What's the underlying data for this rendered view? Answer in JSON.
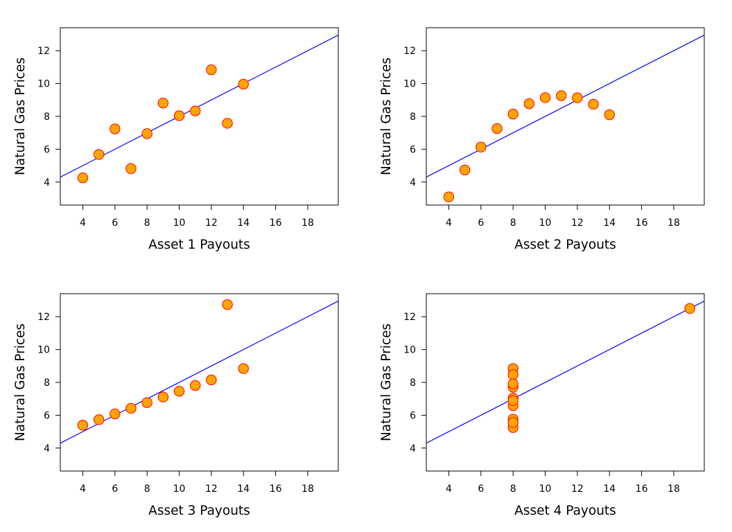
{
  "chart_data": [
    {
      "type": "scatter",
      "xlabel": "Asset 1 Payouts",
      "ylabel": "Natural Gas Prices",
      "xlim": [
        2.6,
        19.9
      ],
      "ylim": [
        2.6,
        13.4
      ],
      "xticks": [
        4,
        6,
        8,
        10,
        12,
        14,
        16,
        18
      ],
      "yticks": [
        4,
        6,
        8,
        10,
        12
      ],
      "x": [
        4,
        5,
        6,
        7,
        8,
        9,
        10,
        11,
        12,
        13,
        14
      ],
      "y": [
        4.26,
        5.68,
        7.24,
        4.82,
        6.95,
        8.81,
        8.04,
        8.33,
        10.84,
        7.58,
        9.96
      ],
      "regression": {
        "intercept": 3.0,
        "slope": 0.5
      },
      "point_fill": "#FFA500",
      "point_stroke": "#FF0000",
      "line_color": "#0000FF",
      "grid": false
    },
    {
      "type": "scatter",
      "xlabel": "Asset 2 Payouts",
      "ylabel": "Natural Gas Prices",
      "xlim": [
        2.6,
        19.9
      ],
      "ylim": [
        2.6,
        13.4
      ],
      "xticks": [
        4,
        6,
        8,
        10,
        12,
        14,
        16,
        18
      ],
      "yticks": [
        4,
        6,
        8,
        10,
        12
      ],
      "x": [
        4,
        5,
        6,
        7,
        8,
        9,
        10,
        11,
        12,
        13,
        14
      ],
      "y": [
        3.1,
        4.74,
        6.13,
        7.26,
        8.14,
        8.77,
        9.14,
        9.26,
        9.13,
        8.74,
        8.1
      ],
      "regression": {
        "intercept": 3.0,
        "slope": 0.5
      },
      "point_fill": "#FFA500",
      "point_stroke": "#FF0000",
      "line_color": "#0000FF",
      "grid": false
    },
    {
      "type": "scatter",
      "xlabel": "Asset 3 Payouts",
      "ylabel": "Natural Gas Prices",
      "xlim": [
        2.6,
        19.9
      ],
      "ylim": [
        2.6,
        13.4
      ],
      "xticks": [
        4,
        6,
        8,
        10,
        12,
        14,
        16,
        18
      ],
      "yticks": [
        4,
        6,
        8,
        10,
        12
      ],
      "x": [
        4,
        5,
        6,
        7,
        8,
        9,
        10,
        11,
        12,
        13,
        14
      ],
      "y": [
        5.39,
        5.73,
        6.08,
        6.42,
        6.77,
        7.11,
        7.46,
        7.81,
        8.15,
        12.74,
        8.84
      ],
      "regression": {
        "intercept": 3.0,
        "slope": 0.5
      },
      "point_fill": "#FFA500",
      "point_stroke": "#FF0000",
      "line_color": "#0000FF",
      "grid": false
    },
    {
      "type": "scatter",
      "xlabel": "Asset 4 Payouts",
      "ylabel": "Natural Gas Prices",
      "xlim": [
        2.6,
        19.9
      ],
      "ylim": [
        2.6,
        13.4
      ],
      "xticks": [
        4,
        6,
        8,
        10,
        12,
        14,
        16,
        18
      ],
      "yticks": [
        4,
        6,
        8,
        10,
        12
      ],
      "x": [
        8,
        8,
        8,
        8,
        8,
        8,
        8,
        19,
        8,
        8,
        8
      ],
      "y": [
        6.58,
        5.76,
        7.71,
        8.84,
        8.47,
        7.04,
        5.25,
        12.5,
        5.56,
        7.91,
        6.89
      ],
      "regression": {
        "intercept": 3.0,
        "slope": 0.5
      },
      "point_fill": "#FFA500",
      "point_stroke": "#FF0000",
      "line_color": "#0000FF",
      "grid": false
    }
  ]
}
